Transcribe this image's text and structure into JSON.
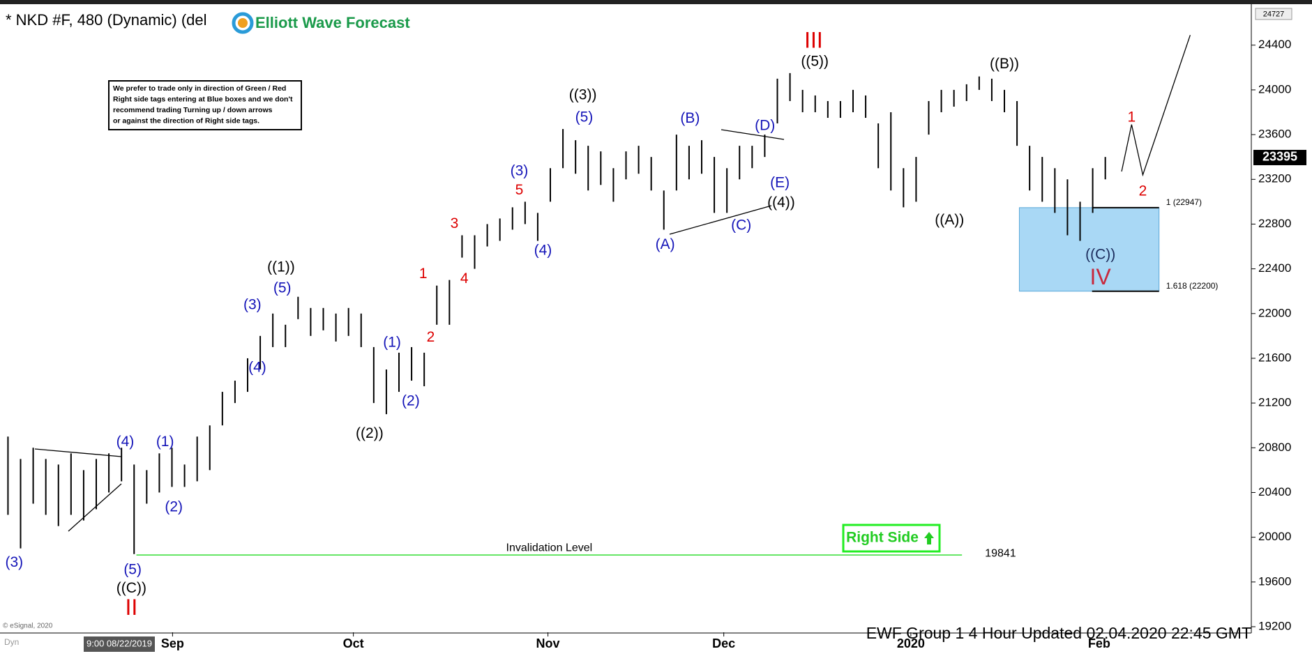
{
  "chart_data": {
    "type": "ohlc",
    "title": "* NKD #F, 480 (Dynamic) (del",
    "logo": "Elliott Wave Forecast",
    "footer": "EWF Group 1 4 Hour  Updated 02.04.2020 22:45 GMT",
    "copyright": "© eSignal, 2020",
    "start_date": "9:00 08/22/2019",
    "corner_label": "Dyn",
    "note": [
      "We prefer to trade only in direction of Green / Red",
      "Right side tags entering at Blue boxes and we don't",
      "recommend trading Turning up / down arrows",
      "or against the direction of Right side tags."
    ],
    "right_side": "Right Side",
    "bar_color": "#000000",
    "high": [
      20900,
      20700,
      20800,
      20700,
      20650,
      20750,
      20600,
      20700,
      20750,
      20800,
      20650,
      20600,
      20750,
      20800,
      20650,
      20900,
      21000,
      21300,
      21400,
      21600,
      21800,
      22000,
      21900,
      22150,
      22050,
      22050,
      22000,
      22050,
      22000,
      21700,
      21500,
      21650,
      21700,
      21650,
      22250,
      22300,
      22700,
      22700,
      22800,
      22850,
      22950,
      23000,
      22900,
      23300,
      23650,
      23550,
      23500,
      23450,
      23300,
      23450,
      23500,
      23400,
      23100,
      23600,
      23500,
      23550,
      23400,
      23300,
      23500,
      23500,
      23600,
      24100,
      24150,
      24000,
      23950,
      23900,
      23900,
      24000,
      23950,
      23700,
      23800,
      23300,
      23400,
      23900,
      24000,
      24000,
      24050,
      24120,
      24100,
      24000,
      23900,
      23500,
      23400,
      23300,
      23200,
      23000,
      23300,
      23400
    ],
    "low": [
      20200,
      19900,
      20300,
      20200,
      20100,
      20200,
      20150,
      20250,
      20400,
      20500,
      19850,
      20300,
      20400,
      20450,
      20450,
      20500,
      20600,
      21000,
      21200,
      21300,
      21500,
      21700,
      21700,
      21950,
      21800,
      21850,
      21750,
      21800,
      21700,
      21200,
      21100,
      21300,
      21400,
      21350,
      21900,
      21900,
      22500,
      22400,
      22600,
      22650,
      22750,
      22800,
      22650,
      23000,
      23300,
      23250,
      23100,
      23150,
      23000,
      23200,
      23250,
      23100,
      22750,
      23100,
      23200,
      23250,
      22900,
      22900,
      23200,
      23300,
      23400,
      23700,
      23900,
      23800,
      23800,
      23750,
      23750,
      23800,
      23750,
      23300,
      23100,
      22950,
      23000,
      23600,
      23800,
      23850,
      23900,
      24000,
      23900,
      23800,
      23500,
      23100,
      23000,
      22900,
      22700,
      22650,
      22900,
      23200
    ],
    "xlim": [
      0,
      100
    ],
    "xticks": [
      {
        "value": 13.5,
        "label": "Sep"
      },
      {
        "value": 28,
        "label": "Oct"
      },
      {
        "value": 43.6,
        "label": "Nov"
      },
      {
        "value": 57.7,
        "label": "Dec"
      },
      {
        "value": 72.7,
        "label": "2020"
      },
      {
        "value": 87.8,
        "label": "Feb"
      }
    ],
    "ylim": [
      19150,
      24750
    ],
    "yticks": [
      19200,
      19600,
      20000,
      20400,
      20800,
      21200,
      21600,
      22000,
      22400,
      22800,
      23200,
      23600,
      24000,
      24400
    ],
    "top_price": 24727,
    "last_price": 23395,
    "invalidation": {
      "value": 19841,
      "label": "Invalidation Level",
      "x": [
        10.6,
        76.8
      ],
      "color": "#33dd33"
    },
    "fib_box": {
      "x": [
        81.4,
        92.6
      ],
      "color": "#a9d8f5",
      "levels": [
        {
          "value": 22947,
          "label": "1 (22947)"
        },
        {
          "value": 22200,
          "label": "1.618 (22200)"
        }
      ]
    },
    "projection": {
      "x": [
        89.6,
        90.4,
        91.3,
        95.1
      ],
      "y": [
        23270,
        23690,
        23240,
        24490
      ]
    },
    "annotations": [
      {
        "text": "(3)",
        "x": 0.8,
        "y": 19772,
        "color": "#1414b8"
      },
      {
        "text": "(4)",
        "x": 9.7,
        "y": 20848,
        "color": "#1414b8"
      },
      {
        "text": "(5)",
        "x": 10.3,
        "y": 19704,
        "color": "#1414b8"
      },
      {
        "text": "((C))",
        "x": 10.2,
        "y": 19540,
        "color": "#000000"
      },
      {
        "text": "II",
        "x": 10.2,
        "y": 19360,
        "color": "#dd0000"
      },
      {
        "text": "(1)",
        "x": 12.9,
        "y": 20848,
        "color": "#1414b8"
      },
      {
        "text": "(2)",
        "x": 13.6,
        "y": 20265,
        "color": "#1414b8"
      },
      {
        "text": "(3)",
        "x": 19.9,
        "y": 22075,
        "color": "#1414b8"
      },
      {
        "text": "(4)",
        "x": 20.3,
        "y": 21514,
        "color": "#1414b8"
      },
      {
        "text": "(5)",
        "x": 22.3,
        "y": 22224,
        "color": "#1414b8"
      },
      {
        "text": "((1))",
        "x": 22.2,
        "y": 22411,
        "color": "#000000"
      },
      {
        "text": "((2))",
        "x": 29.3,
        "y": 20923,
        "color": "#000000"
      },
      {
        "text": "(1)",
        "x": 31.1,
        "y": 21738,
        "color": "#1414b8"
      },
      {
        "text": "(2)",
        "x": 32.6,
        "y": 21215,
        "color": "#1414b8"
      },
      {
        "text": "1",
        "x": 33.6,
        "y": 22351,
        "color": "#dd0000"
      },
      {
        "text": "2",
        "x": 34.2,
        "y": 21783,
        "color": "#dd0000"
      },
      {
        "text": "3",
        "x": 36.1,
        "y": 22800,
        "color": "#dd0000"
      },
      {
        "text": "4",
        "x": 36.9,
        "y": 22306,
        "color": "#dd0000"
      },
      {
        "text": "5",
        "x": 41.3,
        "y": 23099,
        "color": "#dd0000"
      },
      {
        "text": "(3)",
        "x": 41.3,
        "y": 23271,
        "color": "#1414b8"
      },
      {
        "text": "(4)",
        "x": 43.2,
        "y": 22561,
        "color": "#1414b8"
      },
      {
        "text": "(5)",
        "x": 46.5,
        "y": 23750,
        "color": "#1414b8"
      },
      {
        "text": "((3))",
        "x": 46.4,
        "y": 23951,
        "color": "#000000"
      },
      {
        "text": "(A)",
        "x": 53.0,
        "y": 22613,
        "color": "#1414b8"
      },
      {
        "text": "(B)",
        "x": 55.0,
        "y": 23742,
        "color": "#1414b8"
      },
      {
        "text": "(C)",
        "x": 59.1,
        "y": 22785,
        "color": "#1414b8"
      },
      {
        "text": "(D)",
        "x": 61.0,
        "y": 23675,
        "color": "#1414b8"
      },
      {
        "text": "(E)",
        "x": 62.2,
        "y": 23166,
        "color": "#1414b8"
      },
      {
        "text": "((4))",
        "x": 62.3,
        "y": 22987,
        "color": "#000000"
      },
      {
        "text": "((5))",
        "x": 65.0,
        "y": 24250,
        "color": "#000000"
      },
      {
        "text": "III",
        "x": 64.9,
        "y": 24430,
        "color": "#dd0000"
      },
      {
        "text": "((A))",
        "x": 75.8,
        "y": 22830,
        "color": "#000000"
      },
      {
        "text": "((B))",
        "x": 80.2,
        "y": 24228,
        "color": "#000000"
      },
      {
        "text": "((C))",
        "x": 87.9,
        "y": 22523,
        "color": "#1a2a5a"
      },
      {
        "text": "IV",
        "x": 87.9,
        "y": 22314,
        "color": "#c8283c"
      },
      {
        "text": "1",
        "x": 90.4,
        "y": 23749,
        "color": "#dd0000"
      },
      {
        "text": "2",
        "x": 91.3,
        "y": 23091,
        "color": "#dd0000"
      }
    ]
  }
}
